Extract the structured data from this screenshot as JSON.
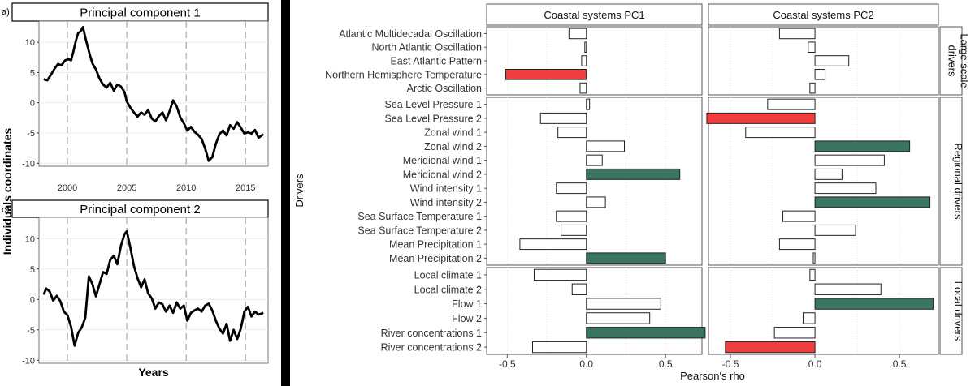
{
  "left": {
    "ylabel": "Individuals coordinates",
    "xlabel": "Years",
    "panels": [
      {
        "tag": "a)",
        "title": "Principal component 1",
        "yticks": [
          10,
          5,
          0,
          -5,
          -10
        ],
        "xticks": [
          2000,
          2005,
          2010,
          2015
        ],
        "ylim": [
          -10.5,
          13.5
        ],
        "xlim": [
          1997.6,
          2016.9
        ],
        "vlines": [
          2000,
          2005,
          2010,
          2015
        ],
        "series": [
          [
            1998.0,
            3.9
          ],
          [
            1998.3,
            3.7
          ],
          [
            1998.6,
            4.6
          ],
          [
            1998.9,
            5.6
          ],
          [
            1999.2,
            6.4
          ],
          [
            1999.5,
            6.2
          ],
          [
            1999.8,
            7.0
          ],
          [
            2000.1,
            7.2
          ],
          [
            2000.3,
            7.0
          ],
          [
            2000.5,
            8.5
          ],
          [
            2000.7,
            10.2
          ],
          [
            2000.9,
            11.5
          ],
          [
            2001.1,
            11.8
          ],
          [
            2001.3,
            12.5
          ],
          [
            2001.5,
            10.8
          ],
          [
            2001.7,
            9.3
          ],
          [
            2001.9,
            7.8
          ],
          [
            2002.1,
            6.5
          ],
          [
            2002.4,
            5.5
          ],
          [
            2002.7,
            4.0
          ],
          [
            2003.0,
            3.0
          ],
          [
            2003.3,
            2.5
          ],
          [
            2003.6,
            3.3
          ],
          [
            2003.9,
            2.0
          ],
          [
            2004.2,
            3.0
          ],
          [
            2004.5,
            2.7
          ],
          [
            2004.8,
            1.8
          ],
          [
            2005.0,
            0.2
          ],
          [
            2005.3,
            -0.8
          ],
          [
            2005.6,
            -1.6
          ],
          [
            2005.9,
            -2.3
          ],
          [
            2006.2,
            -1.6
          ],
          [
            2006.5,
            -2.0
          ],
          [
            2006.8,
            -1.2
          ],
          [
            2007.1,
            -2.6
          ],
          [
            2007.4,
            -3.1
          ],
          [
            2007.7,
            -2.2
          ],
          [
            2008.0,
            -1.6
          ],
          [
            2008.3,
            -2.9
          ],
          [
            2008.6,
            -1.4
          ],
          [
            2008.9,
            0.4
          ],
          [
            2009.2,
            -0.6
          ],
          [
            2009.5,
            -2.4
          ],
          [
            2009.8,
            -3.4
          ],
          [
            2010.1,
            -4.6
          ],
          [
            2010.4,
            -4.0
          ],
          [
            2010.7,
            -4.8
          ],
          [
            2011.0,
            -5.3
          ],
          [
            2011.3,
            -6.0
          ],
          [
            2011.6,
            -7.6
          ],
          [
            2011.9,
            -9.6
          ],
          [
            2012.2,
            -9.0
          ],
          [
            2012.5,
            -6.8
          ],
          [
            2012.8,
            -5.2
          ],
          [
            2013.1,
            -4.6
          ],
          [
            2013.4,
            -5.4
          ],
          [
            2013.7,
            -3.7
          ],
          [
            2014.0,
            -4.3
          ],
          [
            2014.3,
            -3.2
          ],
          [
            2014.6,
            -4.1
          ],
          [
            2014.9,
            -5.1
          ],
          [
            2015.2,
            -4.9
          ],
          [
            2015.5,
            -5.1
          ],
          [
            2015.8,
            -4.5
          ],
          [
            2016.1,
            -5.8
          ],
          [
            2016.5,
            -5.2
          ]
        ]
      },
      {
        "tag": "c)",
        "title": "Principal component 2",
        "yticks": [
          10,
          5,
          0,
          -5,
          -10
        ],
        "xticks": [],
        "ylim": [
          -10.5,
          13.5
        ],
        "xlim": [
          1997.6,
          2016.9
        ],
        "vlines": [
          2000,
          2005,
          2010,
          2015
        ],
        "series": [
          [
            1998.0,
            0.8
          ],
          [
            1998.2,
            1.8
          ],
          [
            1998.5,
            1.3
          ],
          [
            1998.8,
            -0.2
          ],
          [
            1999.1,
            0.6
          ],
          [
            1999.4,
            -0.3
          ],
          [
            1999.7,
            -2.0
          ],
          [
            2000.0,
            -2.6
          ],
          [
            2000.3,
            -4.5
          ],
          [
            2000.6,
            -7.6
          ],
          [
            2000.9,
            -5.5
          ],
          [
            2001.2,
            -4.6
          ],
          [
            2001.5,
            -3.0
          ],
          [
            2001.8,
            3.8
          ],
          [
            2002.1,
            2.5
          ],
          [
            2002.4,
            0.5
          ],
          [
            2002.7,
            2.5
          ],
          [
            2003.0,
            4.5
          ],
          [
            2003.3,
            4.2
          ],
          [
            2003.6,
            6.5
          ],
          [
            2003.9,
            7.2
          ],
          [
            2004.2,
            5.8
          ],
          [
            2004.5,
            8.8
          ],
          [
            2004.8,
            10.7
          ],
          [
            2005.0,
            11.2
          ],
          [
            2005.3,
            8.5
          ],
          [
            2005.6,
            5.5
          ],
          [
            2005.9,
            3.5
          ],
          [
            2006.2,
            2.0
          ],
          [
            2006.5,
            3.3
          ],
          [
            2006.8,
            1.0
          ],
          [
            2007.1,
            0.2
          ],
          [
            2007.4,
            -1.5
          ],
          [
            2007.7,
            -0.5
          ],
          [
            2008.0,
            -0.8
          ],
          [
            2008.3,
            -2.0
          ],
          [
            2008.6,
            -1.0
          ],
          [
            2008.9,
            -2.2
          ],
          [
            2009.2,
            -0.5
          ],
          [
            2009.5,
            -1.5
          ],
          [
            2009.8,
            -1.0
          ],
          [
            2010.1,
            -3.5
          ],
          [
            2010.4,
            -2.2
          ],
          [
            2010.7,
            -1.8
          ],
          [
            2011.0,
            -1.5
          ],
          [
            2011.3,
            -2.0
          ],
          [
            2011.6,
            -1.0
          ],
          [
            2011.9,
            -0.7
          ],
          [
            2012.2,
            -1.8
          ],
          [
            2012.5,
            -3.5
          ],
          [
            2012.8,
            -4.8
          ],
          [
            2013.1,
            -5.6
          ],
          [
            2013.4,
            -4.0
          ],
          [
            2013.7,
            -6.8
          ],
          [
            2014.0,
            -5.0
          ],
          [
            2014.3,
            -6.5
          ],
          [
            2014.6,
            -4.8
          ],
          [
            2014.9,
            -2.0
          ],
          [
            2015.2,
            -1.2
          ],
          [
            2015.5,
            -2.8
          ],
          [
            2015.8,
            -2.0
          ],
          [
            2016.1,
            -2.5
          ],
          [
            2016.5,
            -2.2
          ]
        ]
      }
    ]
  },
  "right": {
    "ylabel": "Drivers",
    "xlabel": "Pearson's rho",
    "columns": [
      "Coastal systems PC1",
      "Coastal systems PC2"
    ],
    "xticks": [
      "-0.5",
      "0.0",
      "0.5"
    ],
    "xtick_values": [
      -0.5,
      0.0,
      0.5
    ],
    "xlim": [
      -0.63,
      0.73
    ],
    "colors": {
      "negative": "#f03e3e",
      "positive": "#3a7562",
      "neutral": "#ffffff"
    },
    "groups": [
      {
        "label": "Large scale drivers",
        "label_lines": [
          "Large scale",
          "drivers"
        ]
      },
      {
        "label": "Regional drivers",
        "label_lines": [
          "Regional drivers"
        ]
      },
      {
        "label": "Local drivers",
        "label_lines": [
          "Local drivers"
        ]
      }
    ]
  },
  "chart_data": [
    {
      "type": "line",
      "title": "Principal component 1",
      "xlabel": "Years",
      "ylabel": "Individuals coordinates",
      "xlim": [
        1997.6,
        2016.9
      ],
      "ylim": [
        -10.5,
        13.5
      ],
      "grid": true
    },
    {
      "type": "line",
      "title": "Principal component 2",
      "xlabel": "Years",
      "ylabel": "Individuals coordinates",
      "xlim": [
        1997.6,
        2016.9
      ],
      "ylim": [
        -10.5,
        13.5
      ],
      "grid": true
    },
    {
      "type": "bar",
      "orientation": "horizontal",
      "xlabel": "Pearson's rho",
      "ylabel": "Drivers",
      "xlim": [
        -0.63,
        0.73
      ],
      "grid": true,
      "groups": [
        {
          "label": "Large scale drivers",
          "categories": [
            "Atlantic Multidecadal Oscillation",
            "North Atlantic Oscillation",
            "East Atlantic Pattern",
            "Northern Hemisphere Temperature",
            "Arctic Oscillation"
          ],
          "series": [
            {
              "name": "Coastal systems PC1",
              "values": [
                -0.11,
                -0.01,
                -0.03,
                -0.51,
                -0.04
              ],
              "significant": [
                "none",
                "none",
                "none",
                "neg",
                "none"
              ]
            },
            {
              "name": "Coastal systems PC2",
              "values": [
                -0.21,
                -0.04,
                0.2,
                0.06,
                -0.03
              ],
              "significant": [
                "none",
                "none",
                "none",
                "none",
                "none"
              ]
            }
          ]
        },
        {
          "label": "Regional drivers",
          "categories": [
            "Sea Level Pressure 1",
            "Sea Level Pressure 2",
            "Zonal wind 1",
            "Zonal wind 2",
            "Meridional wind 1",
            "Meridional wind 2",
            "Wind intensity 1",
            "Wind intensity 2",
            "Sea Surface Temperature 1",
            "Sea Surface Temperature 2",
            "Mean Precipitation 1",
            "Mean Precipitation 2"
          ],
          "series": [
            {
              "name": "Coastal systems PC1",
              "values": [
                0.02,
                -0.29,
                -0.18,
                0.24,
                0.1,
                0.59,
                -0.19,
                0.12,
                -0.19,
                -0.16,
                -0.42,
                0.5
              ],
              "significant": [
                "none",
                "none",
                "none",
                "none",
                "none",
                "pos",
                "none",
                "none",
                "none",
                "none",
                "none",
                "pos"
              ]
            },
            {
              "name": "Coastal systems PC2",
              "values": [
                -0.28,
                -0.64,
                -0.41,
                0.56,
                0.41,
                0.16,
                0.36,
                0.68,
                -0.19,
                0.24,
                -0.21,
                -0.01
              ],
              "significant": [
                "none",
                "neg",
                "none",
                "pos",
                "none",
                "none",
                "none",
                "pos",
                "none",
                "none",
                "none",
                "none"
              ]
            }
          ]
        },
        {
          "label": "Local drivers",
          "categories": [
            "Local climate 1",
            "Local climate 2",
            "Flow 1",
            "Flow 2",
            "River concentrations 1",
            "River concentrations 2"
          ],
          "series": [
            {
              "name": "Coastal systems PC1",
              "values": [
                -0.33,
                -0.09,
                0.47,
                0.4,
                0.75,
                -0.34
              ],
              "significant": [
                "none",
                "none",
                "none",
                "none",
                "pos",
                "none"
              ]
            },
            {
              "name": "Coastal systems PC2",
              "values": [
                -0.03,
                0.39,
                0.7,
                -0.07,
                -0.24,
                -0.53
              ],
              "significant": [
                "none",
                "none",
                "pos",
                "none",
                "none",
                "neg"
              ]
            }
          ]
        }
      ]
    }
  ]
}
